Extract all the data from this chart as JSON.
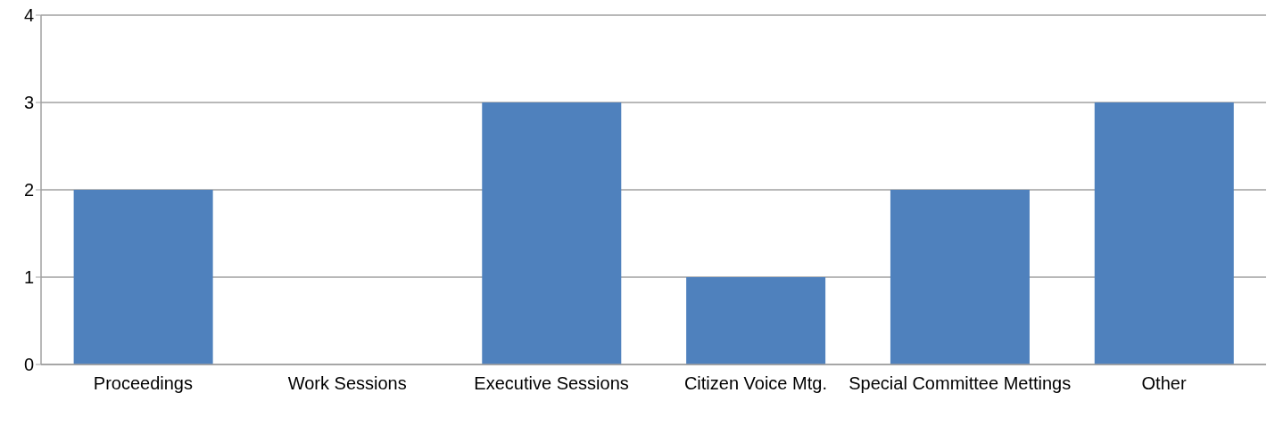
{
  "chart_data": {
    "type": "bar",
    "categories": [
      "Proceedings",
      "Work Sessions",
      "Executive Sessions",
      "Citizen Voice Mtg.",
      "Special Committee Mettings",
      "Other"
    ],
    "values": [
      2,
      0,
      3,
      1,
      2,
      3
    ],
    "color": "#4f81bd",
    "ylim": [
      0,
      4
    ],
    "yticks": [
      0,
      1,
      2,
      3,
      4
    ],
    "grid": "y",
    "legend": false
  }
}
